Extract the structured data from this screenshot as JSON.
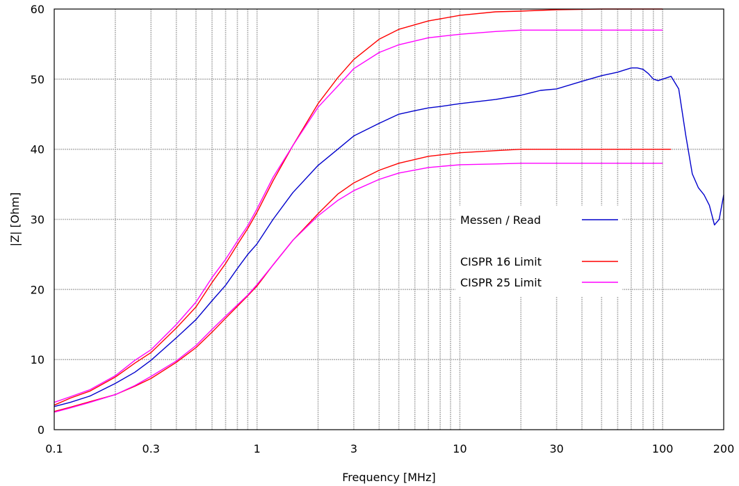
{
  "chart_data": {
    "type": "line",
    "title": "",
    "xlabel": "Frequency [MHz]",
    "ylabel": "|Z| [Ohm]",
    "xscale": "log",
    "xlim": [
      0.1,
      200
    ],
    "ylim": [
      0,
      60
    ],
    "grid": true,
    "legend_position": "center-right",
    "x_ticks": [
      {
        "value": 0.1,
        "label": "0.1"
      },
      {
        "value": 0.3,
        "label": "0.3"
      },
      {
        "value": 1,
        "label": "1"
      },
      {
        "value": 3,
        "label": "3"
      },
      {
        "value": 10,
        "label": "10"
      },
      {
        "value": 30,
        "label": "30"
      },
      {
        "value": 100,
        "label": "100"
      },
      {
        "value": 200,
        "label": "200"
      }
    ],
    "y_ticks": [
      {
        "value": 0,
        "label": "0"
      },
      {
        "value": 10,
        "label": "10"
      },
      {
        "value": 20,
        "label": "20"
      },
      {
        "value": 30,
        "label": "30"
      },
      {
        "value": 40,
        "label": "40"
      },
      {
        "value": 50,
        "label": "50"
      },
      {
        "value": 60,
        "label": "60"
      }
    ],
    "series": [
      {
        "name": "Messen / Read",
        "color": "#0000cc",
        "x": [
          0.1,
          0.12,
          0.15,
          0.2,
          0.25,
          0.3,
          0.4,
          0.5,
          0.6,
          0.7,
          0.8,
          0.9,
          1.0,
          1.2,
          1.5,
          2.0,
          2.5,
          3.0,
          4.0,
          5.0,
          6.0,
          7.0,
          8.0,
          10,
          15,
          20,
          25,
          30,
          40,
          50,
          60,
          70,
          75,
          80,
          85,
          90,
          95,
          100,
          110,
          120,
          130,
          140,
          150,
          160,
          170,
          180,
          190,
          200
        ],
        "y": [
          3.3,
          3.9,
          4.8,
          6.6,
          8.2,
          9.9,
          13.1,
          15.7,
          18.4,
          20.6,
          23.0,
          25.0,
          26.5,
          30.0,
          33.8,
          37.7,
          40.0,
          41.9,
          43.7,
          45.0,
          45.5,
          45.9,
          46.1,
          46.5,
          47.1,
          47.7,
          48.4,
          48.6,
          49.7,
          50.5,
          51.0,
          51.6,
          51.6,
          51.4,
          50.8,
          50.0,
          49.8,
          50.0,
          50.4,
          48.6,
          42.0,
          36.5,
          34.5,
          33.5,
          32.0,
          29.2,
          30.0,
          33.5
        ]
      },
      {
        "name": "CISPR 16 Limit",
        "color": "#ff0000",
        "x": [
          0.1,
          0.12,
          0.15,
          0.2,
          0.25,
          0.3,
          0.4,
          0.5,
          0.6,
          0.7,
          0.8,
          0.9,
          1.0,
          1.2,
          1.5,
          2.0,
          2.5,
          3.0,
          4.0,
          5.0,
          7.0,
          10,
          15,
          20,
          30,
          50,
          100
        ],
        "y": [
          3.5,
          4.5,
          5.5,
          7.5,
          9.5,
          11.0,
          14.5,
          17.5,
          21.0,
          23.7,
          26.4,
          28.7,
          31.0,
          35.5,
          40.5,
          46.5,
          50.2,
          52.8,
          55.7,
          57.1,
          58.3,
          59.1,
          59.6,
          59.7,
          59.9,
          60.0,
          60.0
        ]
      },
      {
        "name": "",
        "color": "#ff0000",
        "x": [
          0.1,
          0.12,
          0.15,
          0.2,
          0.25,
          0.3,
          0.4,
          0.5,
          0.6,
          0.7,
          0.8,
          0.9,
          1.0,
          1.2,
          1.5,
          2.0,
          2.5,
          3.0,
          4.0,
          5.0,
          7.0,
          10,
          15,
          20,
          30,
          50,
          110
        ],
        "y": [
          2.6,
          3.2,
          4.0,
          5.0,
          6.2,
          7.3,
          9.6,
          11.7,
          13.9,
          15.9,
          17.6,
          19.1,
          20.5,
          23.5,
          27.0,
          30.8,
          33.6,
          35.2,
          37.0,
          38.0,
          39.0,
          39.5,
          39.8,
          40.0,
          40.0,
          40.0,
          40.0
        ]
      },
      {
        "name": "CISPR 25 Limit",
        "color": "#ff00ff",
        "x": [
          0.1,
          0.12,
          0.15,
          0.2,
          0.25,
          0.3,
          0.4,
          0.5,
          0.6,
          0.7,
          0.8,
          0.9,
          1.0,
          1.2,
          1.5,
          2.0,
          2.5,
          3.0,
          4.0,
          5.0,
          7.0,
          10,
          15,
          20,
          30,
          50,
          100
        ],
        "y": [
          3.9,
          4.7,
          5.7,
          7.7,
          9.9,
          11.4,
          15.0,
          18.2,
          21.7,
          24.3,
          26.9,
          29.1,
          31.5,
          36.0,
          40.5,
          46.0,
          49.0,
          51.5,
          53.8,
          54.9,
          55.9,
          56.4,
          56.8,
          57.0,
          57.0,
          57.0,
          57.0
        ]
      },
      {
        "name": "",
        "color": "#ff00ff",
        "x": [
          0.1,
          0.12,
          0.15,
          0.2,
          0.25,
          0.3,
          0.4,
          0.5,
          0.6,
          0.7,
          0.8,
          0.9,
          1.0,
          1.2,
          1.5,
          2.0,
          2.5,
          3.0,
          4.0,
          5.0,
          7.0,
          10,
          15,
          20,
          30,
          50,
          100
        ],
        "y": [
          2.5,
          3.1,
          3.9,
          5.0,
          6.3,
          7.6,
          9.8,
          12.0,
          14.3,
          16.2,
          17.8,
          19.2,
          20.7,
          23.5,
          27.0,
          30.5,
          32.7,
          34.1,
          35.7,
          36.6,
          37.4,
          37.8,
          37.9,
          38.0,
          38.0,
          38.0,
          38.0
        ]
      }
    ]
  }
}
